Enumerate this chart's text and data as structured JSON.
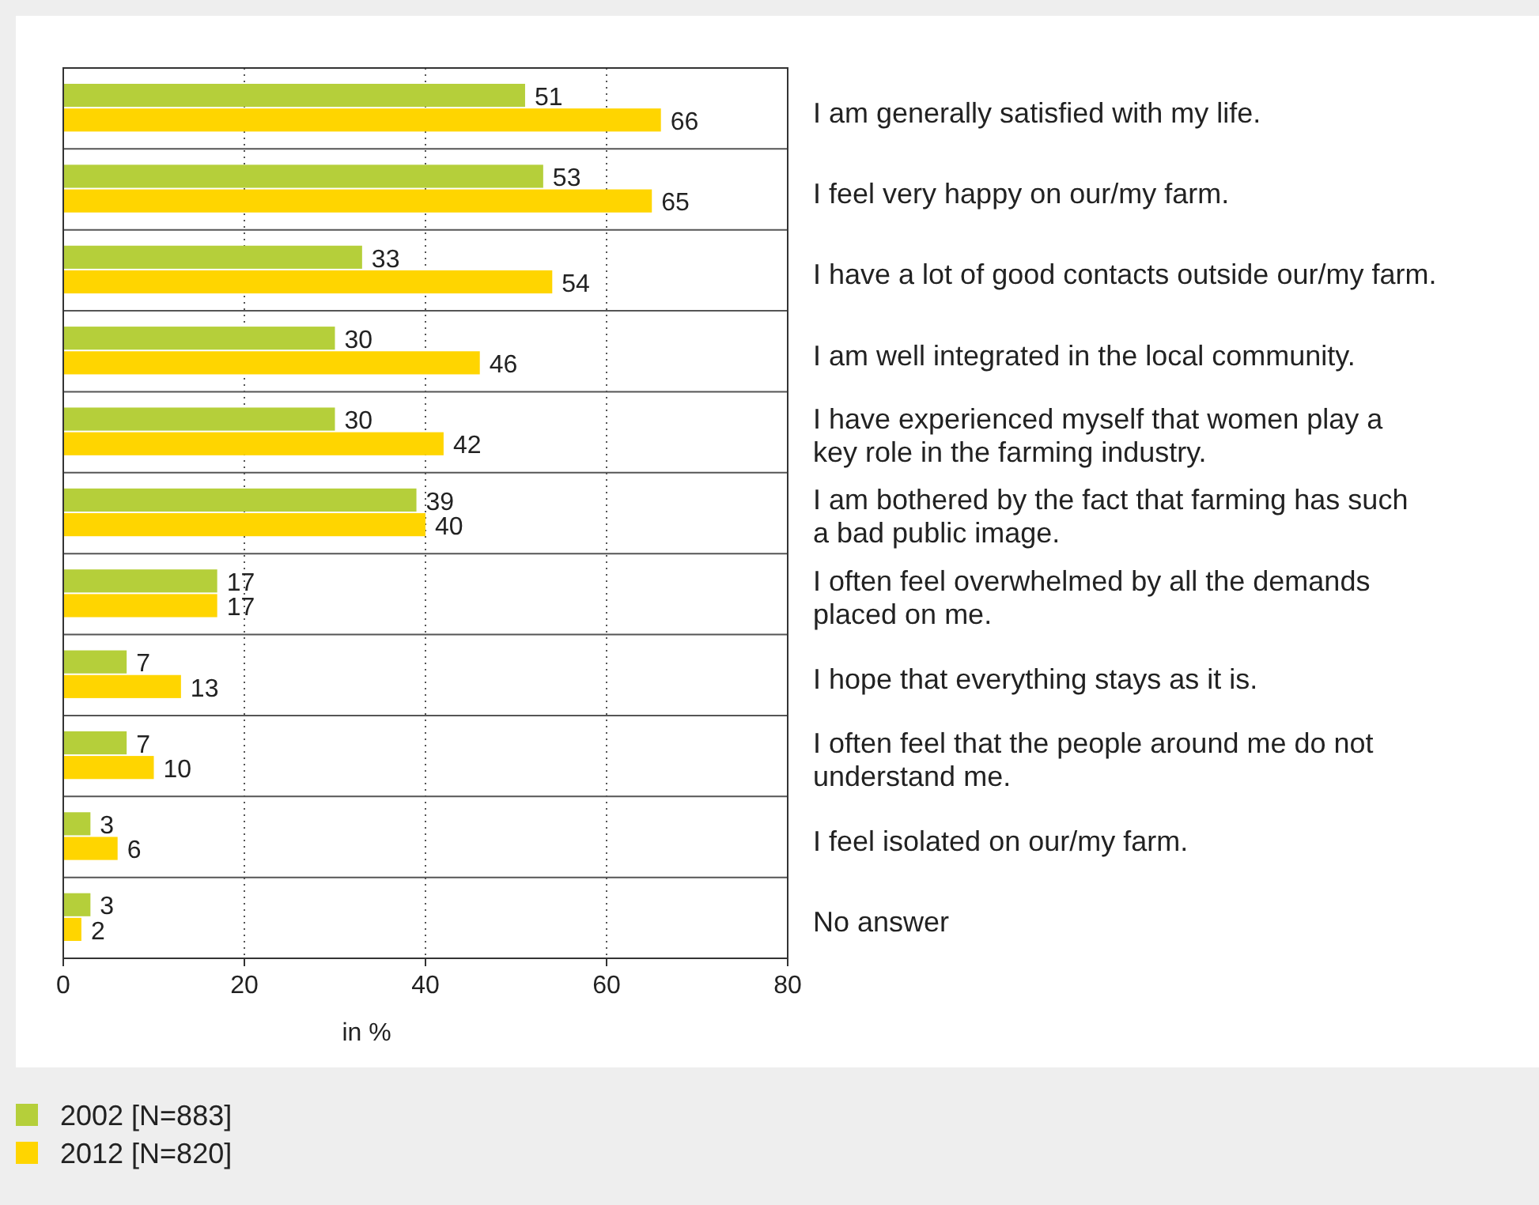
{
  "chart_data": {
    "type": "bar",
    "orientation": "horizontal",
    "categories": [
      "I am generally satisfied with my life.",
      "I feel very happy on our/my farm.",
      "I have a lot of good contacts outside our/my farm.",
      "I am well integrated in the local community.",
      "I have experienced myself that women play a key role in the farming industry.",
      "I am bothered by the fact that farming has such a bad public image.",
      "I often feel overwhelmed by all the demands placed on me.",
      "I hope that everything stays as it is.",
      "I often feel that the people around me do not understand me.",
      "I feel isolated on our/my farm.",
      "No answer"
    ],
    "series": [
      {
        "name": "2002 [N=883]",
        "color": "#b5cf3a",
        "values": [
          51,
          53,
          33,
          30,
          30,
          39,
          17,
          7,
          7,
          3,
          3
        ]
      },
      {
        "name": "2012 [N=820]",
        "color": "#ffd500",
        "values": [
          66,
          65,
          54,
          46,
          42,
          40,
          17,
          13,
          10,
          6,
          2
        ]
      }
    ],
    "xlim": [
      0,
      80
    ],
    "xticks": [
      0,
      20,
      40,
      60,
      80
    ],
    "xlabel": "in %",
    "grid": "x",
    "data_labels": true,
    "legend": "bottom left"
  }
}
